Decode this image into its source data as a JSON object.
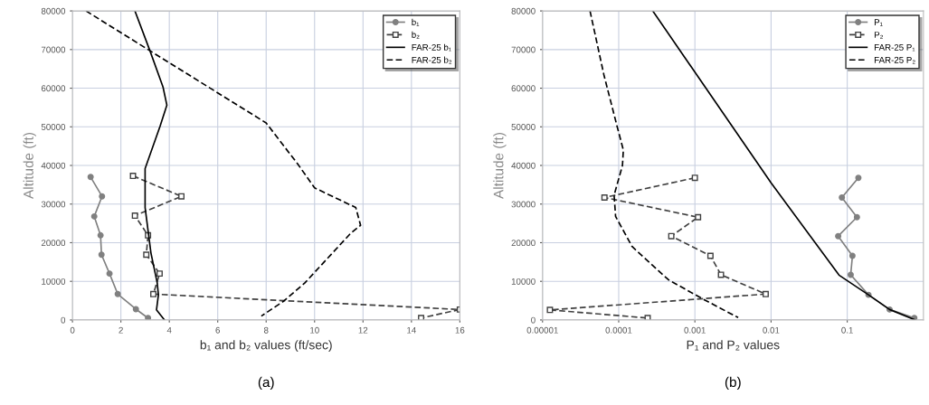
{
  "chart_data": [
    {
      "type": "line",
      "xlabel": "b₁ and b₂ values (ft/sec)",
      "ylabel": "Altitude (ft)",
      "annotations": [
        "(a)"
      ],
      "xlim": [
        0,
        16
      ],
      "xticks": [
        0,
        2,
        4,
        6,
        8,
        10,
        12,
        14,
        16
      ],
      "ylim": [
        0,
        80000
      ],
      "yticks": [
        0,
        10000,
        20000,
        30000,
        40000,
        50000,
        60000,
        70000,
        80000
      ],
      "grid": true,
      "legend": "top right",
      "series": [
        {
          "name": "b₁",
          "color": "#808080",
          "marker": "circle",
          "line_style": "solid",
          "x": [
            0.75,
            1.22,
            0.9,
            1.16,
            1.2,
            1.53,
            1.87,
            2.62,
            3.12
          ],
          "values": [
            37000,
            32000,
            26800,
            21900,
            16900,
            12000,
            6700,
            2800,
            500
          ]
        },
        {
          "name": "b₂",
          "color": "#404040",
          "marker": "square",
          "line_style": "dashed",
          "x": [
            2.5,
            4.5,
            2.58,
            3.12,
            3.05,
            3.6,
            3.34,
            16,
            14.4
          ],
          "values": [
            37300,
            32000,
            27000,
            21900,
            16900,
            12000,
            6700,
            2700,
            500
          ]
        },
        {
          "name": "FAR-25 b₁",
          "color": "#000000",
          "marker": "none",
          "line_style": "solid",
          "x": [
            2.58,
            3.2,
            3.74,
            3.9,
            3.62,
            3.0,
            3.0,
            3.24,
            3.5,
            3.55,
            3.47,
            3.8
          ],
          "values": [
            80000,
            69700,
            60300,
            55600,
            50200,
            39200,
            29100,
            17400,
            9600,
            6500,
            2600,
            0
          ]
        },
        {
          "name": "FAR-25 b₂",
          "color": "#000000",
          "marker": "none",
          "line_style": "dashed",
          "x": [
            0.56,
            3.2,
            8.0,
            9.3,
            10.0,
            11.7,
            11.9,
            11.5,
            9.6,
            8.73,
            7.8
          ],
          "values": [
            80000,
            69700,
            51000,
            40400,
            34200,
            29100,
            24500,
            22500,
            9600,
            4900,
            1000
          ]
        }
      ]
    },
    {
      "type": "line",
      "xlabel": "P₁ and P₂ values",
      "ylabel": "Altitude (ft)",
      "annotations": [
        "(b)"
      ],
      "log": "x",
      "xlim": [
        1e-05,
        1
      ],
      "xticks": [
        {
          "value": 1e-05,
          "label": "0.00001"
        },
        {
          "value": 0.0001,
          "label": "0.0001"
        },
        {
          "value": 0.001,
          "label": "0.001"
        },
        {
          "value": 0.01,
          "label": "0.01"
        },
        {
          "value": 0.1,
          "label": "0.1"
        }
      ],
      "ylim": [
        0,
        80000
      ],
      "yticks": [
        0,
        10000,
        20000,
        30000,
        40000,
        50000,
        60000,
        70000,
        80000
      ],
      "grid": true,
      "legend": "top right",
      "series": [
        {
          "name": "P₁",
          "color": "#808080",
          "marker": "circle",
          "line_style": "solid",
          "x": [
            0.14,
            0.085,
            0.134,
            0.076,
            0.117,
            0.111,
            0.19,
            0.36,
            0.76
          ],
          "values": [
            36800,
            31700,
            26600,
            21700,
            16600,
            11700,
            6500,
            2700,
            500
          ]
        },
        {
          "name": "P₂",
          "color": "#404040",
          "marker": "square",
          "line_style": "dashed",
          "x": [
            0.001,
            6.5e-05,
            0.0011,
            0.00049,
            0.0016,
            0.0022,
            0.0085,
            1.25e-05,
            0.00024
          ],
          "values": [
            36800,
            31700,
            26600,
            21700,
            16600,
            11700,
            6700,
            2600,
            500
          ]
        },
        {
          "name": "FAR-25 P₁",
          "color": "#000000",
          "marker": "none",
          "line_style": "solid",
          "x": [
            0.00028,
            0.01,
            0.078,
            0.19,
            0.36,
            0.78
          ],
          "values": [
            80000,
            35500,
            11600,
            6500,
            2700,
            0
          ]
        },
        {
          "name": "FAR-25 P₂",
          "color": "#000000",
          "marker": "none",
          "line_style": "dashed",
          "x": [
            4.2e-05,
            6.4e-05,
            9.5e-05,
            0.000115,
            0.000112,
            8.7e-05,
            9.1e-05,
            0.00015,
            0.00045,
            0.0012,
            0.0037
          ],
          "values": [
            80000,
            63400,
            50200,
            44000,
            40000,
            32300,
            26800,
            19000,
            10400,
            5700,
            600
          ]
        }
      ]
    }
  ]
}
